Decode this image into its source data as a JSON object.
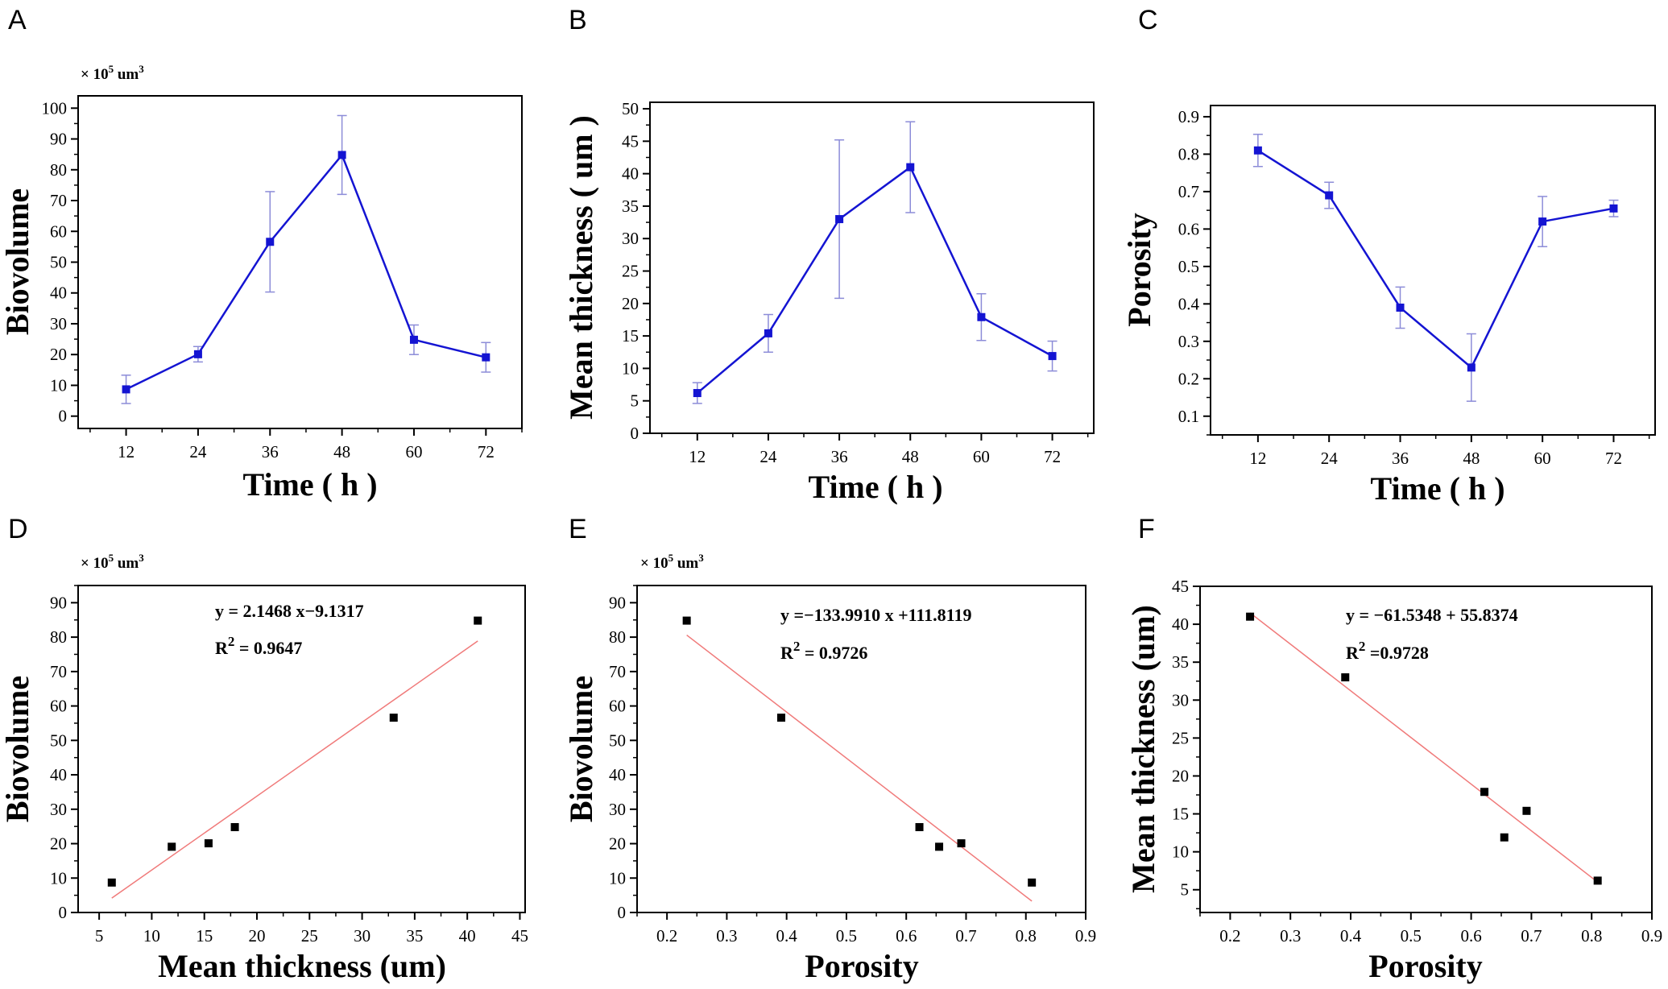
{
  "colors": {
    "series": "#1414d2",
    "errorbar": "#8c8cd8",
    "fit": "#f07a7a",
    "point": "#000000"
  },
  "chart_data": [
    {
      "id": "A",
      "type": "line",
      "letter": "A",
      "xlabel": "Time ( h )",
      "ylabel": "Biovolume",
      "unit": {
        "prefix": "× 10",
        "exp": "5",
        "mid": " um",
        "exp2": "3"
      },
      "x": [
        12,
        24,
        36,
        48,
        60,
        72
      ],
      "y": [
        8.7,
        20.1,
        56.6,
        84.8,
        24.8,
        19.1
      ],
      "err": [
        4.6,
        2.5,
        16.3,
        12.8,
        4.8,
        4.8
      ],
      "xlim": [
        4,
        78
      ],
      "ylim": [
        -4,
        104
      ],
      "xticks": [
        12,
        24,
        36,
        48,
        60,
        72
      ],
      "yticks": [
        0,
        10,
        20,
        30,
        40,
        50,
        60,
        70,
        80,
        90,
        100
      ],
      "xticklabels": [
        "12",
        "24",
        "36",
        "48",
        "60",
        "72"
      ],
      "yticklabels": [
        "0",
        "10",
        "20",
        "30",
        "40",
        "50",
        "60",
        "70",
        "80",
        "90",
        "100"
      ]
    },
    {
      "id": "B",
      "type": "line",
      "letter": "B",
      "xlabel": "Time ( h )",
      "ylabel": "Mean thickness ( um )",
      "x": [
        12,
        24,
        36,
        48,
        60,
        72
      ],
      "y": [
        6.2,
        15.4,
        33.0,
        41.0,
        17.9,
        11.9
      ],
      "err": [
        1.6,
        2.9,
        12.2,
        7.0,
        3.6,
        2.3
      ],
      "xlim": [
        4,
        79
      ],
      "ylim": [
        0,
        51
      ],
      "xticks": [
        12,
        24,
        36,
        48,
        60,
        72
      ],
      "yticks": [
        0,
        5,
        10,
        15,
        20,
        25,
        30,
        35,
        40,
        45,
        50
      ],
      "xticklabels": [
        "12",
        "24",
        "36",
        "48",
        "60",
        "72"
      ],
      "yticklabels": [
        "0",
        "5",
        "10",
        "15",
        "20",
        "25",
        "30",
        "35",
        "40",
        "45",
        "50"
      ]
    },
    {
      "id": "C",
      "type": "line",
      "letter": "C",
      "xlabel": "Time ( h )",
      "ylabel": "Porosity",
      "x": [
        12,
        24,
        36,
        48,
        60,
        72
      ],
      "y": [
        0.81,
        0.69,
        0.39,
        0.23,
        0.62,
        0.655
      ],
      "err": [
        0.043,
        0.035,
        0.055,
        0.09,
        0.067,
        0.022
      ],
      "xlim": [
        4,
        79
      ],
      "ylim": [
        0.05,
        0.93
      ],
      "xticks": [
        12,
        24,
        36,
        48,
        60,
        72
      ],
      "yticks": [
        0.1,
        0.2,
        0.3,
        0.4,
        0.5,
        0.6,
        0.7,
        0.8,
        0.9
      ],
      "xticklabels": [
        "12",
        "24",
        "36",
        "48",
        "60",
        "72"
      ],
      "yticklabels": [
        "0.1",
        "0.2",
        "0.3",
        "0.4",
        "0.5",
        "0.6",
        "0.7",
        "0.8",
        "0.9"
      ]
    },
    {
      "id": "D",
      "type": "scatter",
      "letter": "D",
      "xlabel": "Mean thickness (um)",
      "ylabel": "Biovolume",
      "unit": {
        "prefix": "× 10",
        "exp": "5",
        "mid": " um",
        "exp2": "3"
      },
      "x": [
        6.2,
        11.9,
        15.4,
        17.9,
        33.0,
        41.0
      ],
      "y": [
        8.7,
        19.1,
        20.1,
        24.8,
        56.6,
        84.8
      ],
      "fit": {
        "x": [
          6.2,
          41.0
        ],
        "y": [
          4.18,
          78.89
        ]
      },
      "equation": "y = 2.1468 x−9.1317",
      "r2_prefix": "R",
      "r2_exp": "2",
      "r2_value": " = 0.9647",
      "xlim": [
        3,
        45.5
      ],
      "ylim": [
        0,
        95
      ],
      "xticks": [
        5,
        10,
        15,
        20,
        25,
        30,
        35,
        40,
        45
      ],
      "yticks": [
        0,
        10,
        20,
        30,
        40,
        50,
        60,
        70,
        80,
        90
      ],
      "xticklabels": [
        "5",
        "10",
        "15",
        "20",
        "25",
        "30",
        "35",
        "40",
        "45"
      ],
      "yticklabels": [
        "0",
        "10",
        "20",
        "30",
        "40",
        "50",
        "60",
        "70",
        "80",
        "90"
      ]
    },
    {
      "id": "E",
      "type": "scatter",
      "letter": "E",
      "xlabel": "Porosity",
      "ylabel": "Biovolume",
      "unit": {
        "prefix": "× 10",
        "exp": "5",
        "mid": " um",
        "exp2": "3"
      },
      "x": [
        0.233,
        0.391,
        0.622,
        0.655,
        0.692,
        0.81
      ],
      "y": [
        84.8,
        56.6,
        24.8,
        19.1,
        20.1,
        8.7
      ],
      "fit": {
        "x": [
          0.233,
          0.81
        ],
        "y": [
          80.6,
          3.3
        ]
      },
      "equation": "y =−133.9910 x +111.8119",
      "r2_prefix": "R",
      "r2_exp": "2",
      "r2_value": " = 0.9726",
      "xlim": [
        0.15,
        0.9
      ],
      "ylim": [
        0,
        95
      ],
      "xticks": [
        0.2,
        0.3,
        0.4,
        0.5,
        0.6,
        0.7,
        0.8,
        0.9
      ],
      "yticks": [
        0,
        10,
        20,
        30,
        40,
        50,
        60,
        70,
        80,
        90
      ],
      "xticklabels": [
        "0.2",
        "0.3",
        "0.4",
        "0.5",
        "0.6",
        "0.7",
        "0.8",
        "0.9"
      ],
      "yticklabels": [
        "0",
        "10",
        "20",
        "30",
        "40",
        "50",
        "60",
        "70",
        "80",
        "90"
      ]
    },
    {
      "id": "F",
      "type": "scatter",
      "letter": "F",
      "xlabel": "Porosity",
      "ylabel": "Mean thickness (um)",
      "x": [
        0.233,
        0.391,
        0.622,
        0.655,
        0.692,
        0.81
      ],
      "y": [
        41.0,
        33.0,
        17.9,
        11.9,
        15.4,
        6.2
      ],
      "fit": {
        "x": [
          0.233,
          0.81
        ],
        "y": [
          41.5,
          6.0
        ]
      },
      "equation": "y = −61.5348 + 55.8374",
      "r2_prefix": "R",
      "r2_exp": "2",
      "r2_value": " =0.9728",
      "xlim": [
        0.15,
        0.9
      ],
      "ylim": [
        2,
        45
      ],
      "xticks": [
        0.2,
        0.3,
        0.4,
        0.5,
        0.6,
        0.7,
        0.8,
        0.9
      ],
      "yticks": [
        5,
        10,
        15,
        20,
        25,
        30,
        35,
        40,
        45
      ],
      "xticklabels": [
        "0.2",
        "0.3",
        "0.4",
        "0.5",
        "0.6",
        "0.7",
        "0.8",
        "0.9"
      ],
      "yticklabels": [
        "5",
        "10",
        "15",
        "20",
        "25",
        "30",
        "35",
        "40",
        "45"
      ]
    }
  ]
}
